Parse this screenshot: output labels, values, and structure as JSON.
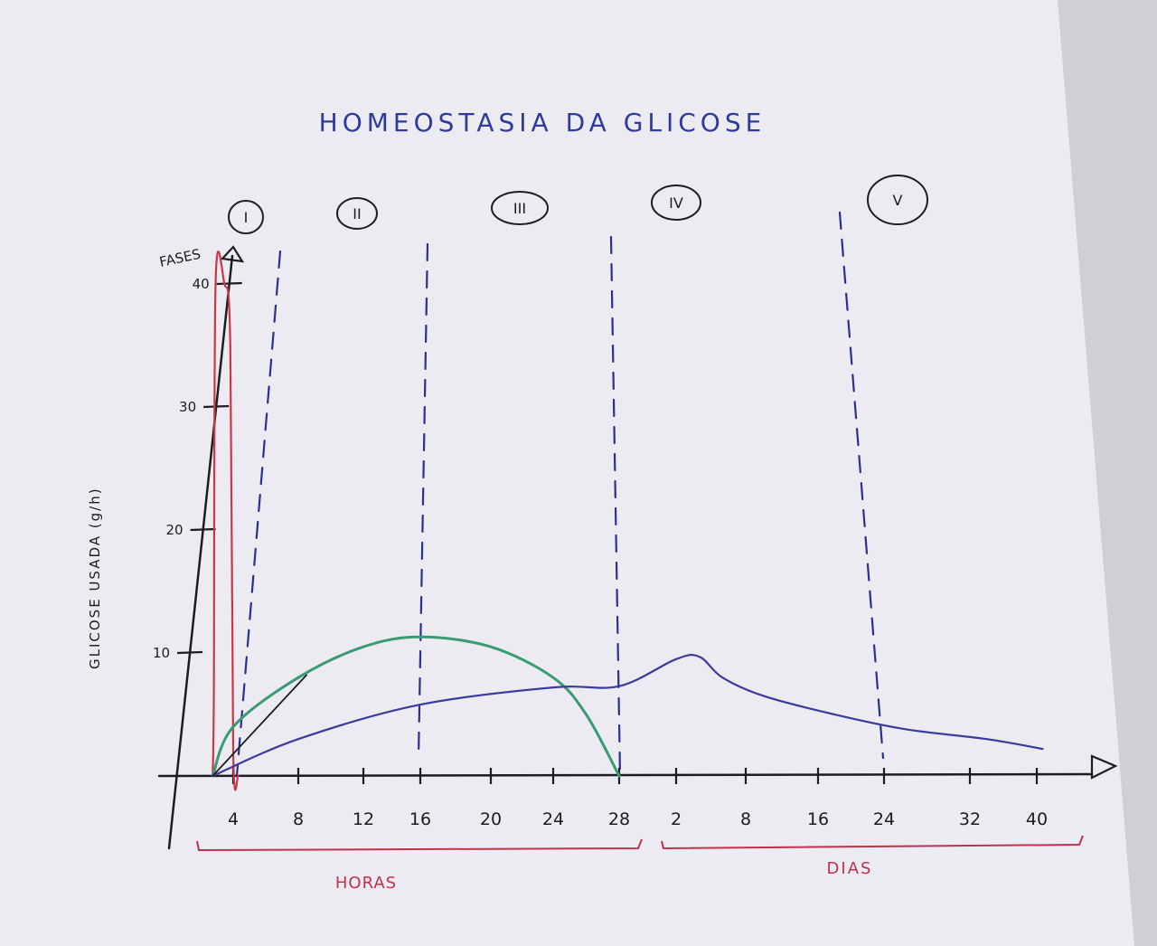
{
  "chart_data": {
    "type": "line",
    "title": "HOMEOSTASIA DA GLICOSE",
    "ylabel": "GLICOSE USADA (g/h)",
    "y_axis_top_label": "FASES",
    "ylim": [
      0,
      40
    ],
    "y_ticks": [
      "10",
      "20",
      "30",
      "40"
    ],
    "x_ticks": [
      "4",
      "8",
      "12",
      "16",
      "20",
      "24",
      "28",
      "2",
      "8",
      "16",
      "24",
      "32",
      "40"
    ],
    "x_groups": [
      {
        "label": "HORAS",
        "ticks": [
          "4",
          "8",
          "12",
          "16",
          "20",
          "24",
          "28"
        ]
      },
      {
        "label": "DIAS",
        "ticks": [
          "2",
          "8",
          "16",
          "24",
          "32",
          "40"
        ]
      }
    ],
    "phases": [
      "I",
      "II",
      "III",
      "IV",
      "V"
    ],
    "series": [
      {
        "color": "#c8384a",
        "points": [
          [
            0.5,
            0
          ],
          [
            0.7,
            7
          ],
          [
            1,
            40
          ],
          [
            2.5,
            40
          ],
          [
            3.5,
            35
          ],
          [
            4,
            2
          ],
          [
            4.3,
            0
          ]
        ]
      },
      {
        "color": "#3a9a72",
        "points": [
          [
            0.5,
            0
          ],
          [
            4,
            4
          ],
          [
            8,
            8
          ],
          [
            12,
            10.5
          ],
          [
            16,
            11.3
          ],
          [
            20,
            10.5
          ],
          [
            24,
            8
          ],
          [
            26,
            5
          ],
          [
            28,
            0
          ]
        ]
      },
      {
        "color": "#3c3a9a",
        "points": [
          [
            0.5,
            0
          ],
          [
            8,
            3
          ],
          [
            16,
            5.8
          ],
          [
            24,
            7.2
          ],
          [
            28,
            7.3
          ],
          [
            30,
            9.5
          ],
          [
            32,
            9.7
          ],
          [
            34,
            8
          ],
          [
            38,
            6.5
          ],
          [
            46,
            5
          ],
          [
            54,
            3.8
          ],
          [
            62,
            3
          ],
          [
            70,
            2.2
          ]
        ]
      }
    ]
  },
  "colors": {
    "ink_blue": "#2e3a9c",
    "ink_black": "#1c1c22",
    "ink_red": "#c0314a",
    "ink_green": "#2f9a6e",
    "phase_line": "#2b2f8f"
  }
}
